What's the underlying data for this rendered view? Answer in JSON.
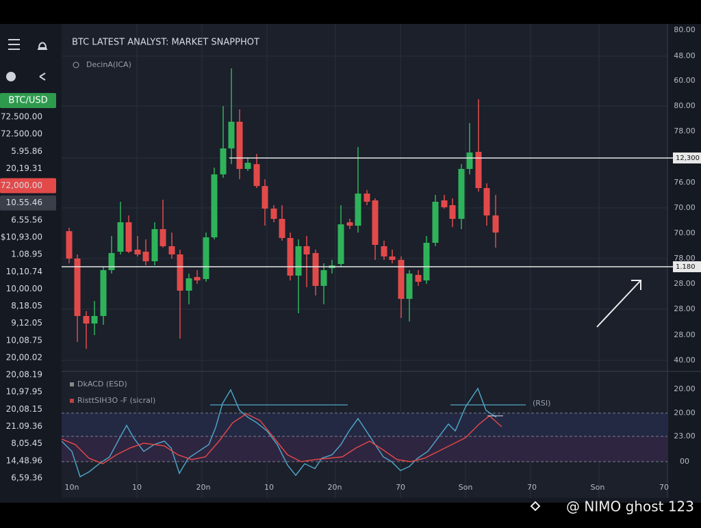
{
  "toolbar": {
    "pair": "BTC/USD"
  },
  "chart": {
    "title": "BTC LATEST ANALYST: MARKET SNAPPHOT",
    "indicator": "DecinA(ICA)",
    "marker_top": "12,300",
    "marker_bottom": "1.180"
  },
  "price_list": [
    "$72.500.00",
    "$72.500.00",
    "5.95.86",
    "20,19.31",
    "$72,000.00",
    "10.55.46",
    "6.55.56",
    "$10,93.00",
    "1.08.95",
    "10,10.74",
    "10,00.00",
    "8,18.05",
    "9,12.05",
    "10,08.75",
    "20,00.02",
    "20,08.19",
    "10,97.95",
    "20,08.15",
    "21.09.36",
    "8,05.45",
    "14,48.96",
    "6,59.36"
  ],
  "right_axis": [
    "80.00",
    "48.00",
    "60.00",
    "80.00",
    "78.00",
    "76.00",
    "70.00",
    "70.00",
    "78.00",
    "28.00",
    "28.00",
    "28.00",
    "40.00"
  ],
  "lower_panel": {
    "label_1": "DkACD (ESD)",
    "label_2": "RisttSIH3O -F (sicral)",
    "label_3": "(RSI)",
    "axis": [
      "20.00",
      "20.00",
      "23.00",
      "00"
    ]
  },
  "x_axis": [
    "10n",
    "10",
    "20n",
    "10",
    "20n",
    "70",
    "Son",
    "70",
    "Son",
    "70"
  ],
  "watermark": "@ NIMO ghost 123"
}
